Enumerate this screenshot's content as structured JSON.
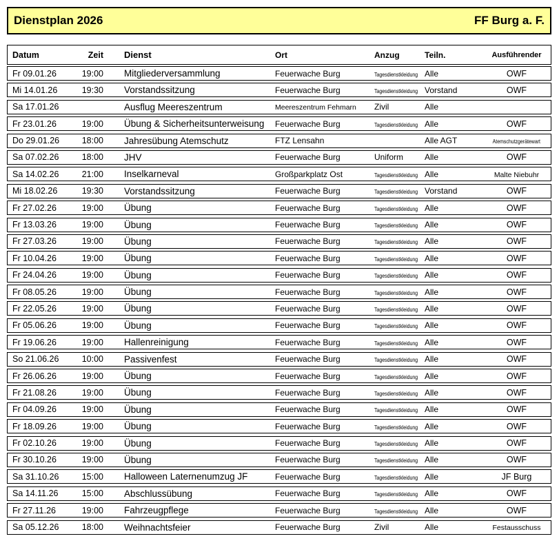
{
  "header": {
    "title": "Dienstplan 2026",
    "org": "FF Burg a. F.",
    "background_color": "#ffff99",
    "border_color": "#000000"
  },
  "table": {
    "columns": [
      "Datum",
      "Zeit",
      "Dienst",
      "Ort",
      "Anzug",
      "Teiln.",
      "Ausführender"
    ],
    "rows": [
      [
        "Fr 09.01.26",
        "19:00",
        "Mitgliederversammlung",
        "Feuerwache Burg",
        "Tagesdienstkleidung",
        "Alle",
        "OWF"
      ],
      [
        "Mi 14.01.26",
        "19:30",
        "Vorstandssitzung",
        "Feuerwache Burg",
        "Tagesdienstkleidung",
        "Vorstand",
        "OWF"
      ],
      [
        "Sa 17.01.26",
        "",
        "Ausflug Meereszentrum",
        "Meereszentrum Fehmarn",
        "Zivil",
        "Alle",
        ""
      ],
      [
        "Fr 23.01.26",
        "19:00",
        "Übung & Sicherheitsunterweisung",
        "Feuerwache Burg",
        "Tagesdienstkleidung",
        "Alle",
        "OWF"
      ],
      [
        "Do 29.01.26",
        "18:00",
        "Jahresübung Atemschutz",
        "FTZ Lensahn",
        "",
        "Alle AGT",
        "Atemschutzgerätewart"
      ],
      [
        "Sa 07.02.26",
        "18:00",
        "JHV",
        "Feuerwache Burg",
        "Uniform",
        "Alle",
        "OWF"
      ],
      [
        "Sa 14.02.26",
        "21:00",
        "Inselkarneval",
        "Großparkplatz Ost",
        "Tagesdienstkleidung",
        "Alle",
        "Malte Niebuhr"
      ],
      [
        "Mi 18.02.26",
        "19:30",
        "Vorstandssitzung",
        "Feuerwache Burg",
        "Tagesdienstkleidung",
        "Vorstand",
        "OWF"
      ],
      [
        "Fr 27.02.26",
        "19:00",
        "Übung",
        "Feuerwache Burg",
        "Tagesdienstkleidung",
        "Alle",
        "OWF"
      ],
      [
        "Fr 13.03.26",
        "19:00",
        "Übung",
        "Feuerwache Burg",
        "Tagesdienstkleidung",
        "Alle",
        "OWF"
      ],
      [
        "Fr 27.03.26",
        "19:00",
        "Übung",
        "Feuerwache Burg",
        "Tagesdienstkleidung",
        "Alle",
        "OWF"
      ],
      [
        "Fr 10.04.26",
        "19:00",
        "Übung",
        "Feuerwache Burg",
        "Tagesdienstkleidung",
        "Alle",
        "OWF"
      ],
      [
        "Fr 24.04.26",
        "19:00",
        "Übung",
        "Feuerwache Burg",
        "Tagesdienstkleidung",
        "Alle",
        "OWF"
      ],
      [
        "Fr 08.05.26",
        "19:00",
        "Übung",
        "Feuerwache Burg",
        "Tagesdienstkleidung",
        "Alle",
        "OWF"
      ],
      [
        "Fr 22.05.26",
        "19:00",
        "Übung",
        "Feuerwache Burg",
        "Tagesdienstkleidung",
        "Alle",
        "OWF"
      ],
      [
        "Fr 05.06.26",
        "19:00",
        "Übung",
        "Feuerwache Burg",
        "Tagesdienstkleidung",
        "Alle",
        "OWF"
      ],
      [
        "Fr 19.06.26",
        "19:00",
        "Hallenreinigung",
        "Feuerwache Burg",
        "Tagesdienstkleidung",
        "Alle",
        "OWF"
      ],
      [
        "So 21.06.26",
        "10:00",
        "Passivenfest",
        "Feuerwache Burg",
        "Tagesdienstkleidung",
        "Alle",
        "OWF"
      ],
      [
        "Fr 26.06.26",
        "19:00",
        "Übung",
        "Feuerwache Burg",
        "Tagesdienstkleidung",
        "Alle",
        "OWF"
      ],
      [
        "Fr 21.08.26",
        "19:00",
        "Übung",
        "Feuerwache Burg",
        "Tagesdienstkleidung",
        "Alle",
        "OWF"
      ],
      [
        "Fr 04.09.26",
        "19:00",
        "Übung",
        "Feuerwache Burg",
        "Tagesdienstkleidung",
        "Alle",
        "OWF"
      ],
      [
        "Fr 18.09.26",
        "19:00",
        "Übung",
        "Feuerwache Burg",
        "Tagesdienstkleidung",
        "Alle",
        "OWF"
      ],
      [
        "Fr 02.10.26",
        "19:00",
        "Übung",
        "Feuerwache Burg",
        "Tagesdienstkleidung",
        "Alle",
        "OWF"
      ],
      [
        "Fr 30.10.26",
        "19:00",
        "Übung",
        "Feuerwache Burg",
        "Tagesdienstkleidung",
        "Alle",
        "OWF"
      ],
      [
        "Sa 31.10.26",
        "15:00",
        "Halloween Laternenumzug JF",
        "Feuerwache Burg",
        "Tagesdienstkleidung",
        "Alle",
        "JF Burg"
      ],
      [
        "Sa 14.11.26",
        "15:00",
        "Abschlussübung",
        "Feuerwache Burg",
        "Tagesdienstkleidung",
        "Alle",
        "OWF"
      ],
      [
        "Fr 27.11.26",
        "19:00",
        "Fahrzeugpflege",
        "Feuerwache Burg",
        "Tagesdienstkleidung",
        "Alle",
        "OWF"
      ],
      [
        "Sa 05.12.26",
        "18:00",
        "Weihnachtsfeier",
        "Feuerwache Burg",
        "Zivil",
        "Alle",
        "Festausschuss"
      ]
    ]
  }
}
